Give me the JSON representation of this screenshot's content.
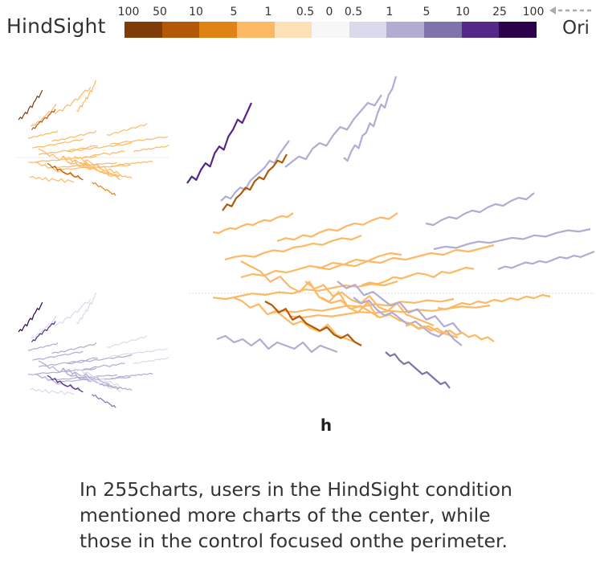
{
  "legend": {
    "left_label": "HindSight",
    "right_label": "Ori",
    "ticks": [
      "100",
      "50",
      "10",
      "5",
      "1",
      "0.5",
      "0",
      "0.5",
      "1",
      "5",
      "10",
      "25",
      "100"
    ],
    "colors": [
      "#7f3b08",
      "#b35806",
      "#e08214",
      "#fdb863",
      "#fee0b6",
      "#f7f7f7",
      "#d8daeb",
      "#b2abd2",
      "#8073ac",
      "#542788",
      "#2d004b"
    ]
  },
  "panel_label": "h",
  "caption": "In 255charts, users in the HindSight condition\nmentioned more charts of the center, while\nthose in the control focused onthe perimeter.",
  "chart_data": {
    "type": "line",
    "title": "",
    "xlabel": "",
    "ylabel": "",
    "grid": false,
    "legend": "top (color scale)",
    "series": [
      {
        "panel": "main",
        "color": "#542788",
        "values": [
          3,
          5,
          4,
          7,
          9,
          8,
          12,
          14,
          13,
          17,
          19,
          22,
          21,
          24,
          27
        ]
      },
      {
        "panel": "main",
        "color": "#b2abd2",
        "values": [
          2,
          4,
          3,
          6,
          8,
          7,
          11,
          13,
          15,
          17,
          20,
          19,
          23,
          26,
          29
        ]
      },
      {
        "panel": "main",
        "color": "#b2abd2",
        "values": [
          1,
          3,
          5,
          4,
          8,
          10,
          9,
          13,
          16,
          15,
          19,
          22,
          25,
          24,
          28
        ]
      },
      {
        "panel": "main",
        "color": "#b2abd2",
        "values": [
          4,
          3,
          6,
          8,
          7,
          11,
          12,
          15,
          14,
          18,
          21,
          20,
          24,
          26,
          30
        ]
      },
      {
        "panel": "main",
        "color": "#b35806",
        "values": [
          2,
          5,
          4,
          8,
          10,
          13,
          12,
          16,
          18,
          17,
          21,
          23,
          26,
          25,
          29
        ]
      },
      {
        "panel": "main",
        "color": "#fdb863",
        "values": [
          5,
          4,
          7,
          9,
          8,
          11,
          13,
          12,
          15,
          17,
          16,
          19,
          21,
          20,
          24
        ]
      },
      {
        "panel": "main",
        "color": "#fdb863",
        "values": [
          6,
          8,
          7,
          10,
          9,
          12,
          14,
          13,
          16,
          18,
          17,
          20,
          22,
          21,
          25
        ]
      },
      {
        "panel": "main",
        "color": "#fdb863",
        "values": [
          3,
          5,
          6,
          5,
          8,
          10,
          9,
          12,
          13,
          15,
          14,
          17,
          19,
          18,
          21
        ]
      },
      {
        "panel": "main",
        "color": "#b2abd2",
        "values": [
          7,
          6,
          9,
          11,
          10,
          13,
          15,
          14,
          17,
          19,
          18,
          21,
          23,
          22,
          26
        ]
      },
      {
        "panel": "main",
        "color": "#fdb863",
        "values": [
          10,
          12,
          11,
          14,
          13,
          15,
          17,
          16,
          19,
          18,
          21,
          20,
          23,
          25,
          24
        ]
      },
      {
        "panel": "main",
        "color": "#fdb863",
        "values": [
          12,
          11,
          14,
          13,
          16,
          15,
          18,
          17,
          19,
          21,
          20,
          23,
          22,
          24,
          26
        ]
      },
      {
        "panel": "main",
        "color": "#b2abd2",
        "values": [
          9,
          11,
          10,
          13,
          15,
          14,
          16,
          18,
          17,
          20,
          19,
          22,
          24,
          23,
          25
        ]
      },
      {
        "panel": "main",
        "color": "#fdb863",
        "values": [
          14,
          13,
          15,
          17,
          16,
          18,
          17,
          20,
          19,
          21,
          23,
          22,
          24,
          23,
          26
        ]
      },
      {
        "panel": "main",
        "color": "#fdb863",
        "values": [
          16,
          18,
          17,
          19,
          18,
          20,
          22,
          21,
          23,
          22,
          25,
          24,
          26,
          25,
          27
        ]
      },
      {
        "panel": "main",
        "color": "#fdb863",
        "values": [
          13,
          15,
          14,
          16,
          19,
          18,
          20,
          22,
          21,
          19,
          23,
          22,
          24,
          26,
          25
        ]
      },
      {
        "panel": "main",
        "color": "#b2abd2",
        "values": [
          15,
          17,
          16,
          18,
          20,
          19,
          21,
          20,
          22,
          24,
          23,
          25,
          24,
          26,
          28
        ]
      },
      {
        "panel": "main",
        "color": "#fdb863",
        "values": [
          18,
          17,
          19,
          18,
          20,
          22,
          21,
          23,
          22,
          24,
          23,
          25,
          27,
          26,
          28
        ]
      },
      {
        "panel": "main",
        "color": "#fdb863",
        "values": [
          20,
          19,
          21,
          23,
          22,
          24,
          23,
          25,
          24,
          26,
          25,
          27,
          26,
          28,
          27
        ]
      },
      {
        "panel": "main",
        "color": "#fdb863",
        "values": [
          22,
          21,
          20,
          18,
          19,
          17,
          16,
          18,
          15,
          14,
          16,
          13,
          12,
          14,
          11
        ]
      },
      {
        "panel": "main",
        "color": "#fdb863",
        "values": [
          21,
          19,
          20,
          17,
          18,
          16,
          15,
          17,
          14,
          13,
          15,
          12,
          11,
          10,
          9
        ]
      },
      {
        "panel": "main",
        "color": "#b2abd2",
        "values": [
          23,
          21,
          22,
          19,
          20,
          18,
          16,
          17,
          14,
          15,
          12,
          13,
          10,
          11,
          8
        ]
      },
      {
        "panel": "main",
        "color": "#fdb863",
        "values": [
          19,
          18,
          16,
          17,
          14,
          15,
          13,
          11,
          12,
          10,
          9,
          11,
          8,
          7,
          6
        ]
      },
      {
        "panel": "main",
        "color": "#b35806",
        "values": [
          17,
          16,
          14,
          15,
          12,
          13,
          11,
          10,
          9,
          10,
          8,
          7,
          8,
          6,
          5
        ]
      },
      {
        "panel": "main",
        "color": "#fdb863",
        "values": [
          24,
          22,
          23,
          20,
          21,
          19,
          17,
          18,
          16,
          15,
          13,
          14,
          12,
          11,
          10
        ]
      },
      {
        "panel": "main",
        "color": "#b2abd2",
        "values": [
          25,
          23,
          24,
          21,
          19,
          20,
          18,
          16,
          17,
          15,
          13,
          12,
          14,
          11,
          9
        ]
      },
      {
        "panel": "main",
        "color": "#8073ac",
        "values": [
          26,
          24,
          25,
          22,
          20,
          21,
          19,
          17,
          15,
          16,
          14,
          12,
          10,
          11,
          8
        ]
      },
      {
        "panel": "main",
        "color": "#fdb863",
        "values": [
          22,
          23,
          21,
          22,
          20,
          21,
          19,
          20,
          18,
          19,
          17,
          18,
          16,
          17,
          15
        ]
      },
      {
        "panel": "main",
        "color": "#b2abd2",
        "values": [
          20,
          21,
          19,
          20,
          18,
          20,
          17,
          19,
          18,
          17,
          19,
          16,
          18,
          17,
          16
        ]
      }
    ]
  }
}
